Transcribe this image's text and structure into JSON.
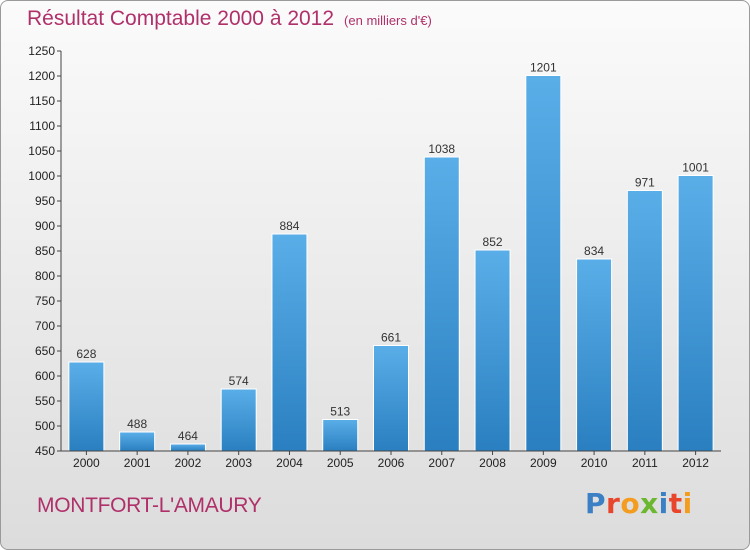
{
  "title": "Résultat Comptable 2000 à 2012",
  "subtitle": "(en milliers d'€)",
  "place": "MONTFORT-L'AMAURY",
  "logo": {
    "text": "Proxiti",
    "colors": [
      "#3b7fc4",
      "#e8452c",
      "#f39c1f",
      "#6bb72f",
      "#3b7fc4",
      "#e8452c",
      "#f39c1f"
    ]
  },
  "colors": {
    "title": "#b0306a",
    "bar_light": "#5aaee8",
    "bar_dark": "#2a7fc0",
    "axis": "#444444"
  },
  "chart_data": {
    "type": "bar",
    "categories": [
      "2000",
      "2001",
      "2002",
      "2003",
      "2004",
      "2005",
      "2006",
      "2007",
      "2008",
      "2009",
      "2010",
      "2011",
      "2012"
    ],
    "values": [
      628,
      488,
      464,
      574,
      884,
      513,
      661,
      1038,
      852,
      1201,
      834,
      971,
      1001
    ],
    "ylim": [
      450,
      1250
    ],
    "yticks": [
      450,
      500,
      550,
      600,
      650,
      700,
      750,
      800,
      850,
      900,
      950,
      1000,
      1050,
      1100,
      1150,
      1200,
      1250
    ],
    "grid": false,
    "title": "Résultat Comptable 2000 à 2012",
    "xlabel": "",
    "ylabel": ""
  }
}
